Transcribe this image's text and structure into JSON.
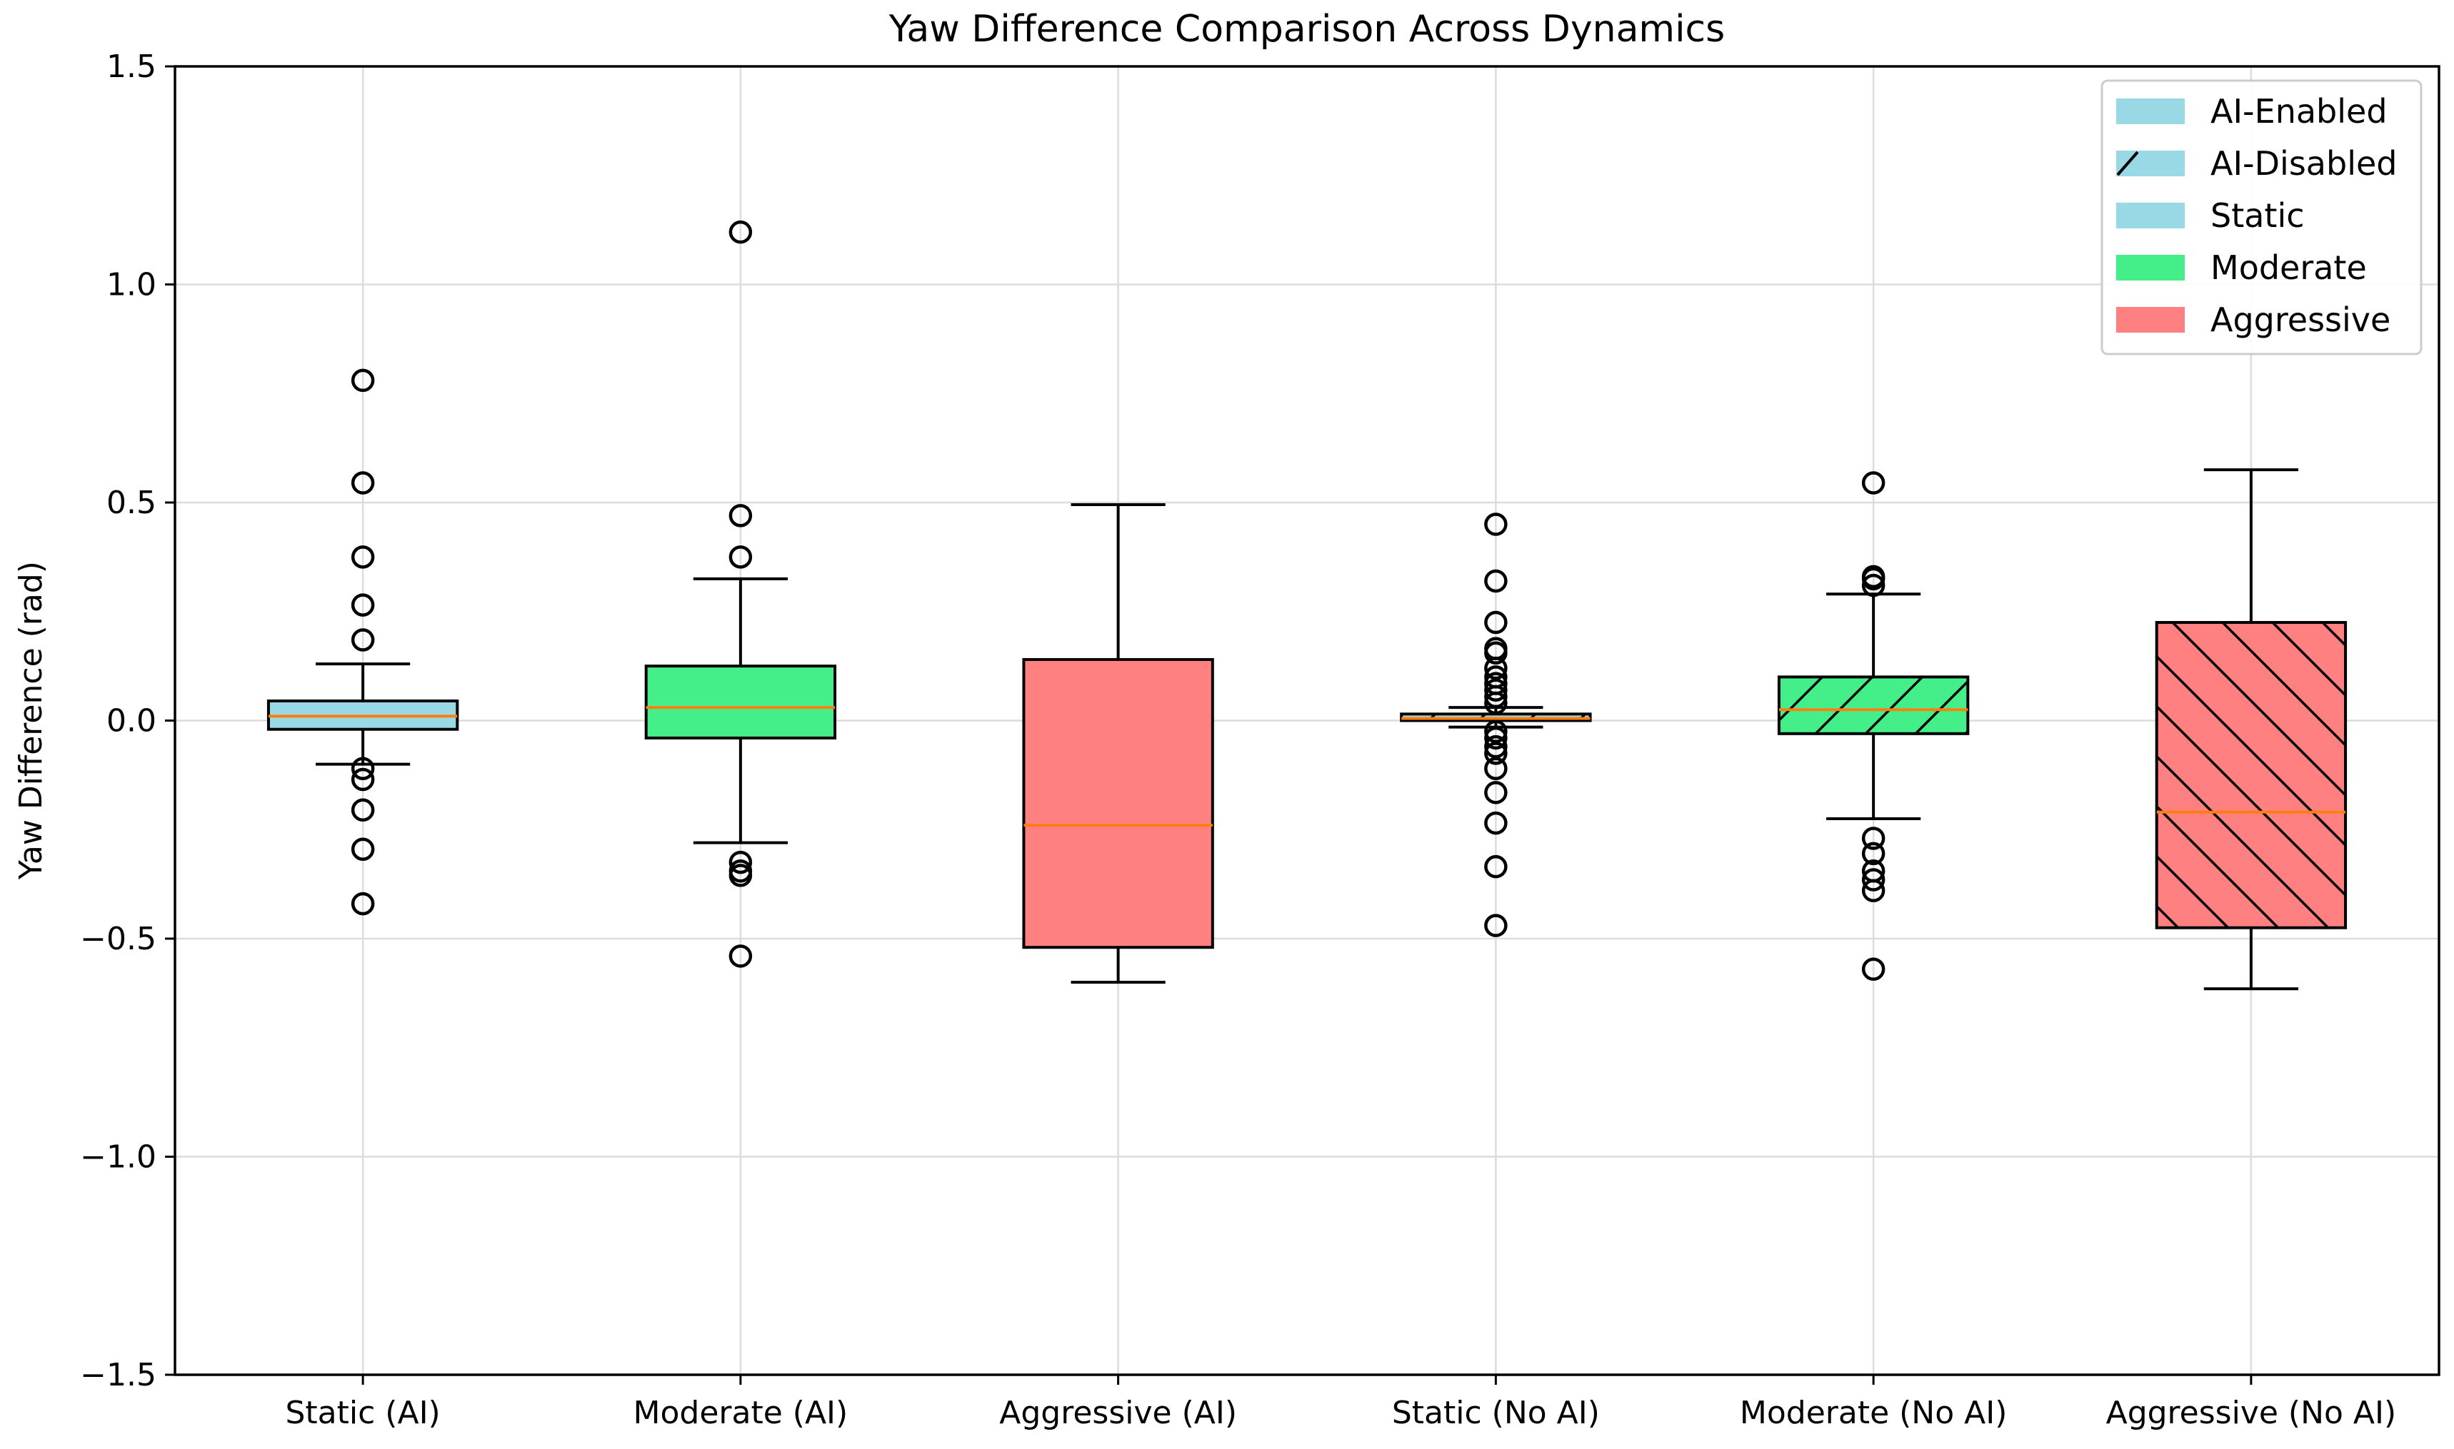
{
  "chart_data": {
    "type": "boxplot",
    "title": "Yaw Difference Comparison Across Dynamics",
    "xlabel": "",
    "ylabel": "Yaw Difference (rad)",
    "ylim": [
      -1.5,
      1.5
    ],
    "yticks": [
      -1.5,
      -1.0,
      -0.5,
      0.0,
      0.5,
      1.0,
      1.5
    ],
    "ytick_labels": [
      "−1.5",
      "−1.0",
      "−0.5",
      "0.0",
      "0.5",
      "1.0",
      "1.5"
    ],
    "grid": true,
    "legend_position": "top-right",
    "legend": [
      {
        "label": "AI-Enabled",
        "color": "#99d8e5",
        "hatch": "none"
      },
      {
        "label": "AI-Disabled",
        "color": "#99d8e5",
        "hatch": "forward"
      },
      {
        "label": "Static",
        "color": "#99d8e5",
        "hatch": "none"
      },
      {
        "label": "Moderate",
        "color": "#44ee88",
        "hatch": "none"
      },
      {
        "label": "Aggressive",
        "color": "#ff8080",
        "hatch": "none"
      }
    ],
    "median_color": "#ff7f0e",
    "boxes": [
      {
        "label": "Static (AI)",
        "color": "#99d8e5",
        "hatch": "none",
        "whisker_low": -0.1,
        "q1": -0.02,
        "median": 0.01,
        "q3": 0.045,
        "whisker_high": 0.13,
        "fliers": [
          0.78,
          0.545,
          0.375,
          0.265,
          0.185,
          -0.11,
          -0.135,
          -0.205,
          -0.295,
          -0.42
        ]
      },
      {
        "label": "Moderate (AI)",
        "color": "#44ee88",
        "hatch": "none",
        "whisker_low": -0.28,
        "q1": -0.04,
        "median": 0.03,
        "q3": 0.125,
        "whisker_high": 0.325,
        "fliers": [
          1.12,
          0.47,
          0.375,
          -0.325,
          -0.345,
          -0.355,
          -0.54
        ]
      },
      {
        "label": "Aggressive (AI)",
        "color": "#ff8080",
        "hatch": "none",
        "whisker_low": -0.6,
        "q1": -0.52,
        "median": -0.24,
        "q3": 0.14,
        "whisker_high": 0.495,
        "fliers": []
      },
      {
        "label": "Static (No AI)",
        "color": "#99d8e5",
        "hatch": "forward",
        "whisker_low": -0.015,
        "q1": 0.0,
        "median": 0.005,
        "q3": 0.015,
        "whisker_high": 0.03,
        "fliers": [
          0.45,
          0.32,
          0.225,
          0.165,
          0.155,
          0.12,
          0.1,
          0.085,
          0.07,
          0.055,
          0.04,
          -0.025,
          -0.04,
          -0.06,
          -0.075,
          -0.11,
          -0.165,
          -0.235,
          -0.335,
          -0.47
        ]
      },
      {
        "label": "Moderate (No AI)",
        "color": "#44ee88",
        "hatch": "forward",
        "whisker_low": -0.225,
        "q1": -0.03,
        "median": 0.025,
        "q3": 0.1,
        "whisker_high": 0.29,
        "fliers": [
          0.545,
          0.33,
          0.325,
          0.31,
          -0.27,
          -0.305,
          -0.345,
          -0.365,
          -0.39,
          -0.57
        ]
      },
      {
        "label": "Aggressive (No AI)",
        "color": "#ff8080",
        "hatch": "backward",
        "whisker_low": -0.615,
        "q1": -0.475,
        "median": -0.21,
        "q3": 0.225,
        "whisker_high": 0.575,
        "fliers": []
      }
    ]
  }
}
